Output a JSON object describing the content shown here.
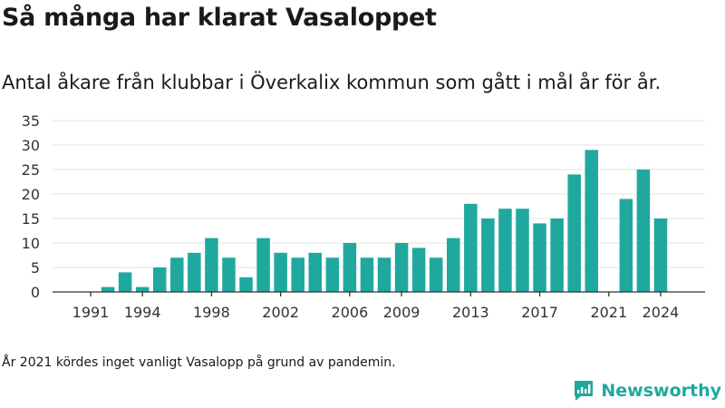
{
  "title": "Så många har klarat Vasaloppet",
  "subtitle": "Antal åkare från klubbar i Överkalix kommun som gått i mål år för år.",
  "footnote": "År 2021 kördes inget vanligt Vasalopp på grund av pandemin.",
  "brand": {
    "name": "Newsworthy",
    "icon": "newsworthy-logo-icon",
    "color": "#1fa99e"
  },
  "chart_data": {
    "type": "bar",
    "title": "",
    "xlabel": "",
    "ylabel": "",
    "color": "#1fa99e",
    "grid": true,
    "ylim": [
      0,
      35
    ],
    "yticks": [
      0,
      5,
      10,
      15,
      20,
      25,
      30,
      35
    ],
    "xticks": [
      1991,
      1994,
      1998,
      2002,
      2006,
      2009,
      2013,
      2017,
      2021,
      2024
    ],
    "x": [
      1991,
      1992,
      1993,
      1994,
      1995,
      1996,
      1997,
      1998,
      1999,
      2000,
      2001,
      2002,
      2003,
      2004,
      2005,
      2006,
      2007,
      2008,
      2009,
      2010,
      2011,
      2012,
      2013,
      2014,
      2015,
      2016,
      2017,
      2018,
      2019,
      2020,
      2021,
      2022,
      2023,
      2024
    ],
    "values": [
      0,
      1,
      4,
      1,
      5,
      7,
      8,
      11,
      7,
      3,
      11,
      8,
      7,
      8,
      7,
      10,
      7,
      7,
      10,
      9,
      7,
      11,
      18,
      15,
      17,
      17,
      14,
      15,
      24,
      29,
      0,
      19,
      25,
      15
    ]
  }
}
